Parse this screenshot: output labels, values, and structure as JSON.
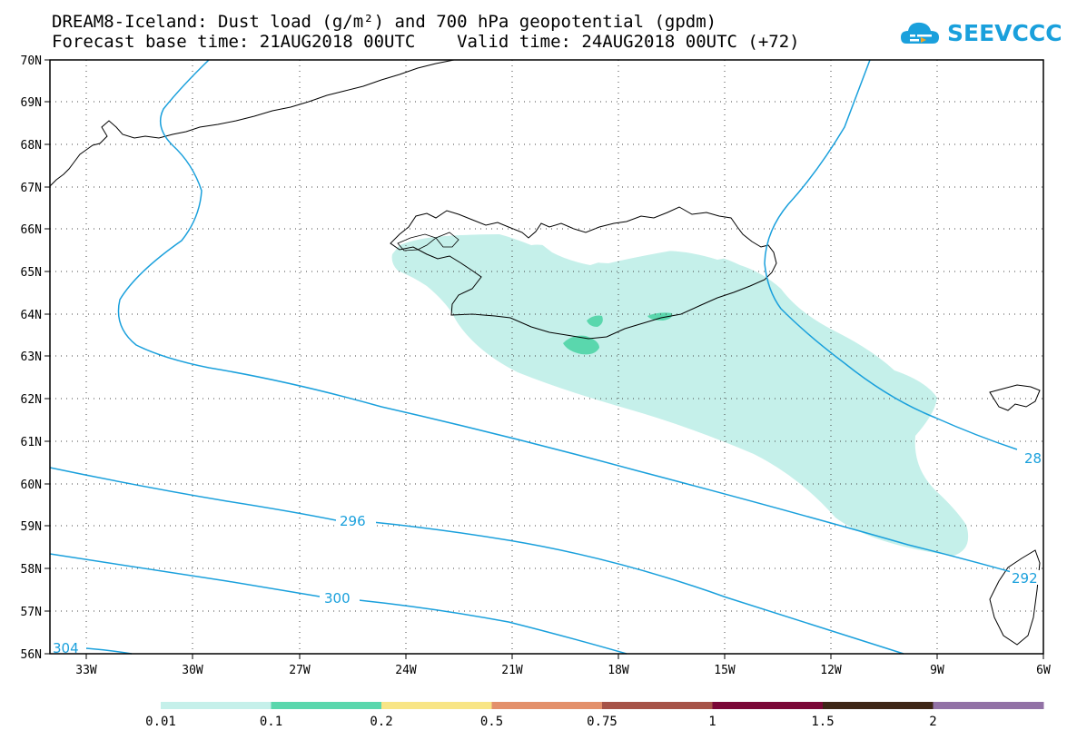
{
  "title_line1": "DREAM8-Iceland: Dust load (g/m²) and 700 hPa geopotential (gpdm)",
  "title_line2": "Forecast base time: 21AUG2018 00UTC    Valid time: 24AUG2018 00UTC (+72)",
  "logo_text": "SEEVCCC",
  "lat_labels": [
    "70N",
    "69N",
    "68N",
    "67N",
    "66N",
    "65N",
    "64N",
    "63N",
    "62N",
    "61N",
    "60N",
    "59N",
    "58N",
    "57N",
    "56N"
  ],
  "lon_labels": [
    "33W",
    "30W",
    "27W",
    "24W",
    "21W",
    "18W",
    "15W",
    "12W",
    "9W",
    "6W"
  ],
  "contour_labels": [
    "296",
    "300",
    "304",
    "28",
    "292"
  ],
  "legend": {
    "labels": [
      "0.01",
      "0.1",
      "0.2",
      "0.5",
      "0.75",
      "1",
      "1.5",
      "2"
    ],
    "colors": [
      "#c5f0ea",
      "#5ad7ad",
      "#f8e586",
      "#e3906b",
      "#a65348",
      "#7b0737",
      "#3e2616",
      "#9272a6"
    ]
  },
  "colors": {
    "contour": "#1aa0dc",
    "dust_light": "#c5f0ea",
    "dust_mid": "#5ad7ad"
  }
}
